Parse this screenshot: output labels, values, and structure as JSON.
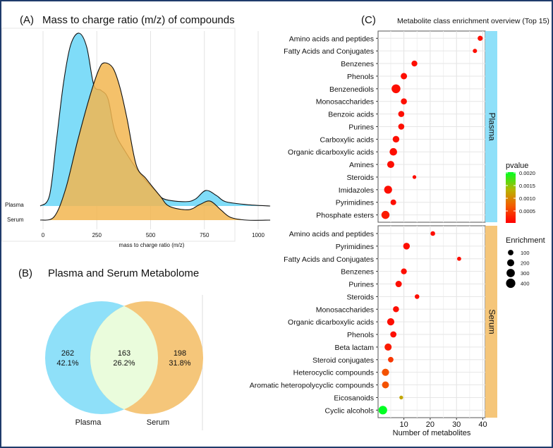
{
  "chart_data": [
    {
      "type": "area",
      "panel": "(A)",
      "title": "Mass to charge ratio (m/z) of compounds",
      "xlabel": "mass to charge ratio (m/z)",
      "ylabel": "",
      "xlim": [
        -15,
        1060
      ],
      "xticks": [
        "0",
        "250",
        "500",
        "750",
        "1000"
      ],
      "xtick_values": [
        0,
        250,
        500,
        750,
        1000
      ],
      "colors": {
        "Plasma": "#7fdcf8",
        "Serum": "#f2b650"
      },
      "series": [
        {
          "name": "Plasma",
          "label": "Plasma",
          "points": [
            [
              -13,
              0
            ],
            [
              30,
              0.06
            ],
            [
              62,
              0.375
            ],
            [
              95,
              0.71
            ],
            [
              128,
              0.93
            ],
            [
              167,
              1.0
            ],
            [
              203,
              0.92
            ],
            [
              236,
              0.7
            ],
            [
              269,
              0.67
            ],
            [
              302,
              0.62
            ],
            [
              334,
              0.43
            ],
            [
              380,
              0.32
            ],
            [
              456,
              0.18
            ],
            [
              521,
              0.09
            ],
            [
              564,
              0.04
            ],
            [
              662,
              0.025
            ],
            [
              708,
              0.04
            ],
            [
              757,
              0.09
            ],
            [
              807,
              0.06
            ],
            [
              849,
              0.025
            ],
            [
              948,
              0.008
            ],
            [
              1056,
              0
            ]
          ]
        },
        {
          "name": "Serum",
          "label": "Serum",
          "points": [
            [
              -13,
              0
            ],
            [
              52,
              0.02
            ],
            [
              105,
              0.18
            ],
            [
              161,
              0.46
            ],
            [
              216,
              0.71
            ],
            [
              259,
              0.87
            ],
            [
              285,
              0.91
            ],
            [
              325,
              0.88
            ],
            [
              357,
              0.77
            ],
            [
              390,
              0.59
            ],
            [
              433,
              0.32
            ],
            [
              479,
              0.24
            ],
            [
              544,
              0.14
            ],
            [
              587,
              0.08
            ],
            [
              675,
              0.06
            ],
            [
              728,
              0.09
            ],
            [
              777,
              0.11
            ],
            [
              826,
              0.06
            ],
            [
              872,
              0.016
            ],
            [
              948,
              0
            ],
            [
              1056,
              0
            ]
          ]
        }
      ]
    },
    {
      "type": "venn",
      "panel": "(B)",
      "title": "Plasma and Serum Metabolome",
      "sets": [
        {
          "name": "Plasma",
          "only_count": "262",
          "only_pct": "42.1%",
          "color": "#8fe0f9"
        },
        {
          "name": "Serum",
          "only_count": "198",
          "only_pct": "31.8%",
          "color": "#f5c67a"
        }
      ],
      "intersection": {
        "count": "163",
        "pct": "26.2%",
        "color": "#eafcdc"
      }
    },
    {
      "type": "scatter",
      "panel": "(C)",
      "title": "Metabolite class enrichment overview (Top 15)",
      "xlabel": "Number of metabolites",
      "xlim": [
        0,
        41.5
      ],
      "xticks": [
        "10",
        "20",
        "30",
        "40"
      ],
      "xtick_values": [
        10,
        20,
        30,
        40
      ],
      "color_legend": {
        "title": "pvalue",
        "labels": [
          "0.0020",
          "0.0015",
          "0.0010",
          "0.0005"
        ],
        "values": [
          0.002,
          0.0015,
          0.001,
          0.0005
        ],
        "range": [
          0,
          0.002
        ]
      },
      "size_legend": {
        "title": "Enrichment",
        "labels": [
          "100",
          "200",
          "300",
          "400"
        ],
        "values": [
          100,
          200,
          300,
          400
        ]
      },
      "facets": [
        {
          "name": "Plasma",
          "strip_color": "#8fe0f9",
          "rows": [
            {
              "label": "Amino acids and peptides",
              "count": 39,
              "enrichment": 80,
              "pvalue": 0.0001
            },
            {
              "label": "Fatty Acids and Conjugates",
              "count": 37,
              "enrichment": 45,
              "pvalue": 0.0001
            },
            {
              "label": "Benzenes",
              "count": 14,
              "enrichment": 120,
              "pvalue": 0.0001
            },
            {
              "label": "Phenols",
              "count": 10,
              "enrichment": 150,
              "pvalue": 0.0001
            },
            {
              "label": "Benzenediols",
              "count": 7,
              "enrichment": 350,
              "pvalue": 0.0001
            },
            {
              "label": "Monosaccharides",
              "count": 10,
              "enrichment": 130,
              "pvalue": 0.0001
            },
            {
              "label": "Benzoic acids",
              "count": 9,
              "enrichment": 130,
              "pvalue": 0.0001
            },
            {
              "label": "Purines",
              "count": 9,
              "enrichment": 130,
              "pvalue": 0.0001
            },
            {
              "label": "Carboxylic acids",
              "count": 7,
              "enrichment": 170,
              "pvalue": 0.0001
            },
            {
              "label": "Organic dicarboxylic acids",
              "count": 6,
              "enrichment": 230,
              "pvalue": 0.0001
            },
            {
              "label": "Amines",
              "count": 5,
              "enrichment": 200,
              "pvalue": 0.0001
            },
            {
              "label": "Steroids",
              "count": 14,
              "enrichment": 30,
              "pvalue": 0.0001
            },
            {
              "label": "Imidazoles",
              "count": 4,
              "enrichment": 270,
              "pvalue": 0.0001
            },
            {
              "label": "Pyrimidines",
              "count": 6,
              "enrichment": 110,
              "pvalue": 0.0001
            },
            {
              "label": "Phosphate esters",
              "count": 3,
              "enrichment": 280,
              "pvalue": 0.0002
            }
          ]
        },
        {
          "name": "Serum",
          "strip_color": "#f5c67a",
          "rows": [
            {
              "label": "Amino acids and peptides",
              "count": 21,
              "enrichment": 60,
              "pvalue": 0.0001
            },
            {
              "label": "Pyrimidines",
              "count": 11,
              "enrichment": 170,
              "pvalue": 0.0001
            },
            {
              "label": "Fatty Acids and Conjugates",
              "count": 31,
              "enrichment": 40,
              "pvalue": 0.0001
            },
            {
              "label": "Benzenes",
              "count": 10,
              "enrichment": 120,
              "pvalue": 0.0001
            },
            {
              "label": "Purines",
              "count": 8,
              "enrichment": 150,
              "pvalue": 0.0001
            },
            {
              "label": "Steroids",
              "count": 15,
              "enrichment": 60,
              "pvalue": 0.0001
            },
            {
              "label": "Monosaccharides",
              "count": 7,
              "enrichment": 130,
              "pvalue": 0.0001
            },
            {
              "label": "Organic dicarboxylic acids",
              "count": 5,
              "enrichment": 210,
              "pvalue": 0.0001
            },
            {
              "label": "Phenols",
              "count": 6,
              "enrichment": 140,
              "pvalue": 0.0001
            },
            {
              "label": "Beta lactam",
              "count": 4,
              "enrichment": 200,
              "pvalue": 0.0002
            },
            {
              "label": "Steroid conjugates",
              "count": 5,
              "enrichment": 100,
              "pvalue": 0.0004
            },
            {
              "label": "Heterocyclic compounds",
              "count": 3,
              "enrichment": 210,
              "pvalue": 0.0006
            },
            {
              "label": "Aromatic heteropolycyclic compounds",
              "count": 3,
              "enrichment": 190,
              "pvalue": 0.0006
            },
            {
              "label": "Eicosanoids",
              "count": 9,
              "enrichment": 30,
              "pvalue": 0.0012
            },
            {
              "label": "Cyclic alcohols",
              "count": 2,
              "enrichment": 330,
              "pvalue": 0.002
            }
          ]
        }
      ]
    }
  ]
}
